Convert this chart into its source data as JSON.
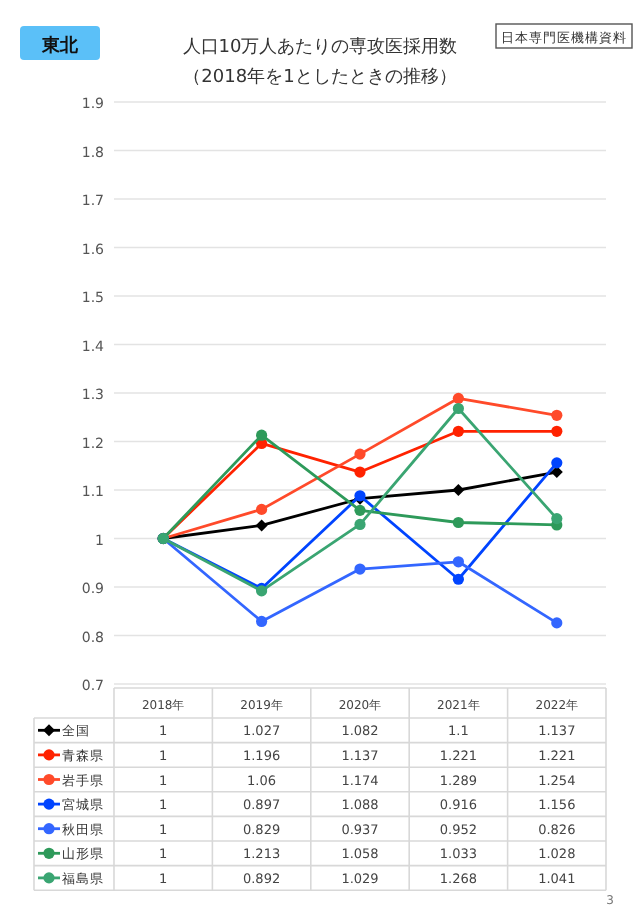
{
  "chart_data": {
    "type": "line",
    "title": "人口10万人あたりの専攻医採用数",
    "subtitle": "（2018年を1としたときの推移）",
    "annotations": [
      "東北",
      "日本専門医機構資料",
      "3"
    ],
    "categories": [
      "2018年",
      "2019年",
      "2020年",
      "2021年",
      "2022年"
    ],
    "series": [
      {
        "name": "全国",
        "color": "#000000",
        "marker": "diamond",
        "values": [
          1,
          1.027,
          1.082,
          1.1,
          1.137
        ]
      },
      {
        "name": "青森県",
        "color": "#ff2200",
        "marker": "circle",
        "values": [
          1,
          1.196,
          1.137,
          1.221,
          1.221
        ]
      },
      {
        "name": "岩手県",
        "color": "#ff4a2a",
        "marker": "circle",
        "values": [
          1,
          1.06,
          1.174,
          1.289,
          1.254
        ]
      },
      {
        "name": "宮城県",
        "color": "#0044ff",
        "marker": "circle",
        "values": [
          1,
          0.897,
          1.088,
          0.916,
          1.156
        ]
      },
      {
        "name": "秋田県",
        "color": "#3366ff",
        "marker": "circle",
        "values": [
          1,
          0.829,
          0.937,
          0.952,
          0.826
        ]
      },
      {
        "name": "山形県",
        "color": "#2e9a5a",
        "marker": "circle",
        "values": [
          1,
          1.213,
          1.058,
          1.033,
          1.028
        ]
      },
      {
        "name": "福島県",
        "color": "#3aa572",
        "marker": "circle",
        "values": [
          1,
          0.892,
          1.029,
          1.268,
          1.041
        ]
      }
    ],
    "ylim": [
      0.7,
      1.9
    ],
    "yticks": [
      0.7,
      0.8,
      0.9,
      1,
      1.1,
      1.2,
      1.3,
      1.4,
      1.5,
      1.6,
      1.7,
      1.8,
      1.9
    ],
    "grid": "y",
    "legend": "bottom",
    "data_labels": true,
    "line_style": "solid"
  }
}
